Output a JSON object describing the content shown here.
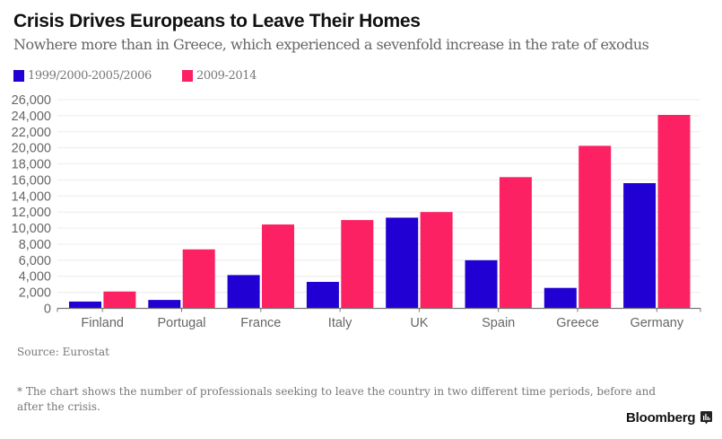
{
  "header": {
    "title": "Crisis Drives Europeans to Leave Their Homes",
    "subtitle": "Nowhere more than in Greece, which experienced a sevenfold increase in the rate of exodus"
  },
  "colors": {
    "series1": "#2000d2",
    "series2": "#fb2162",
    "grid": "#ececec",
    "axis": "#777777"
  },
  "chart_data": {
    "type": "bar",
    "title": "Crisis Drives Europeans to Leave Their Homes",
    "subtitle": "Nowhere more than in Greece, which experienced a sevenfold increase in the rate of exodus",
    "xlabel": "",
    "ylabel": "",
    "categories": [
      "Finland",
      "Portugal",
      "France",
      "Italy",
      "UK",
      "Spain",
      "Greece",
      "Germany"
    ],
    "series": [
      {
        "name": "1999/2000-2005/2006",
        "values": [
          850,
          1050,
          4150,
          3300,
          11300,
          6000,
          2550,
          15600
        ]
      },
      {
        "name": "2009-2014",
        "values": [
          2100,
          7350,
          10450,
          11000,
          12000,
          16350,
          20250,
          24100
        ]
      }
    ],
    "ylim": [
      0,
      26000
    ],
    "yticks": [
      0,
      2000,
      4000,
      6000,
      8000,
      10000,
      12000,
      14000,
      16000,
      18000,
      20000,
      22000,
      24000,
      26000
    ],
    "ytick_labels": [
      "0",
      "2,000",
      "4,000",
      "6,000",
      "8,000",
      "10,000",
      "12,000",
      "14,000",
      "16,000",
      "18,000",
      "20,000",
      "22,000",
      "24,000",
      "26,000"
    ],
    "grid": true,
    "legend_position": "top-left"
  },
  "footer": {
    "source": "Source: Eurostat",
    "note": "* The chart shows the number of professionals seeking to leave the country in two different time periods, before and after the crisis.",
    "brand": "Bloomberg",
    "brand_icon": "bloomberg-chart-icon"
  }
}
